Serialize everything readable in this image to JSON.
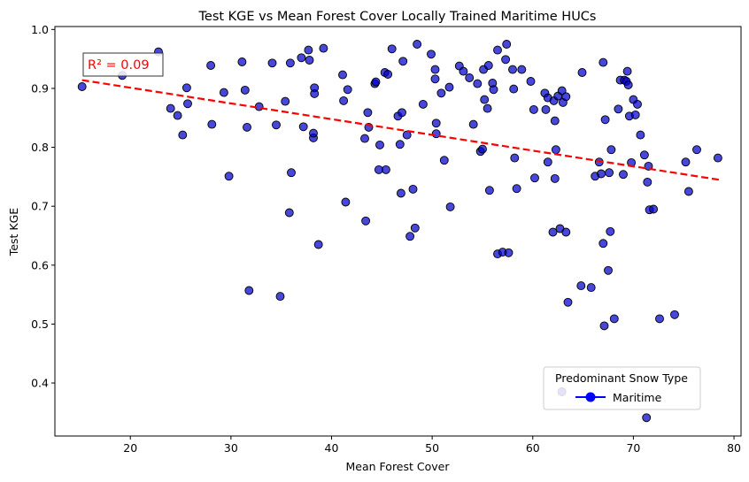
{
  "chart_data": {
    "type": "scatter",
    "title": "Test KGE vs Mean Forest Cover Locally Trained Maritime HUCs",
    "xlabel": "Mean Forest Cover",
    "ylabel": "Test KGE",
    "xlim": [
      12.5,
      80.7
    ],
    "ylim": [
      0.31,
      1.005
    ],
    "xticks": [
      20,
      30,
      40,
      50,
      60,
      70,
      80
    ],
    "yticks": [
      0.4,
      0.5,
      0.6,
      0.7,
      0.8,
      0.9,
      1.0
    ],
    "xtick_labels": [
      "20",
      "30",
      "40",
      "50",
      "60",
      "70",
      "80"
    ],
    "ytick_labels": [
      "0.4",
      "0.5",
      "0.6",
      "0.7",
      "0.8",
      "0.9",
      "1.0"
    ],
    "grid": false,
    "point_color": "#0000cc",
    "trend_color": "#ff0000",
    "trendline": {
      "x": [
        15.2,
        78.5
      ],
      "y": [
        0.914,
        0.745
      ]
    },
    "r2_label": "R² = 0.09",
    "legend": {
      "title": "Predominant Snow Type",
      "entries": [
        "Maritime"
      ],
      "placement": "lower-right"
    },
    "series": [
      {
        "name": "Maritime",
        "points": [
          [
            15.2,
            0.903
          ],
          [
            19.2,
            0.922
          ],
          [
            22.8,
            0.962
          ],
          [
            24.0,
            0.866
          ],
          [
            24.7,
            0.854
          ],
          [
            25.2,
            0.821
          ],
          [
            25.6,
            0.901
          ],
          [
            25.7,
            0.874
          ],
          [
            28.0,
            0.939
          ],
          [
            28.1,
            0.839
          ],
          [
            29.3,
            0.893
          ],
          [
            29.8,
            0.751
          ],
          [
            31.1,
            0.945
          ],
          [
            31.4,
            0.897
          ],
          [
            31.6,
            0.834
          ],
          [
            31.8,
            0.557
          ],
          [
            32.8,
            0.869
          ],
          [
            34.1,
            0.943
          ],
          [
            34.5,
            0.838
          ],
          [
            34.9,
            0.547
          ],
          [
            35.4,
            0.878
          ],
          [
            35.8,
            0.689
          ],
          [
            35.9,
            0.943
          ],
          [
            36.0,
            0.757
          ],
          [
            37.0,
            0.952
          ],
          [
            37.2,
            0.835
          ],
          [
            37.7,
            0.965
          ],
          [
            37.8,
            0.948
          ],
          [
            38.2,
            0.816
          ],
          [
            38.2,
            0.824
          ],
          [
            38.3,
            0.901
          ],
          [
            38.3,
            0.891
          ],
          [
            38.7,
            0.635
          ],
          [
            39.2,
            0.968
          ],
          [
            41.1,
            0.923
          ],
          [
            41.2,
            0.879
          ],
          [
            41.4,
            0.707
          ],
          [
            41.6,
            0.898
          ],
          [
            43.3,
            0.815
          ],
          [
            43.4,
            0.675
          ],
          [
            43.6,
            0.859
          ],
          [
            43.7,
            0.834
          ],
          [
            44.3,
            0.908
          ],
          [
            44.4,
            0.911
          ],
          [
            44.7,
            0.762
          ],
          [
            44.8,
            0.804
          ],
          [
            45.3,
            0.927
          ],
          [
            45.4,
            0.762
          ],
          [
            45.6,
            0.924
          ],
          [
            46.0,
            0.967
          ],
          [
            46.6,
            0.853
          ],
          [
            46.8,
            0.805
          ],
          [
            46.9,
            0.722
          ],
          [
            47.0,
            0.859
          ],
          [
            47.1,
            0.946
          ],
          [
            47.5,
            0.821
          ],
          [
            47.8,
            0.649
          ],
          [
            48.1,
            0.729
          ],
          [
            48.3,
            0.663
          ],
          [
            48.5,
            0.975
          ],
          [
            49.1,
            0.873
          ],
          [
            49.9,
            0.958
          ],
          [
            50.3,
            0.932
          ],
          [
            50.3,
            0.916
          ],
          [
            50.4,
            0.823
          ],
          [
            50.4,
            0.841
          ],
          [
            50.9,
            0.892
          ],
          [
            51.2,
            0.778
          ],
          [
            51.7,
            0.902
          ],
          [
            51.8,
            0.699
          ],
          [
            52.7,
            0.938
          ],
          [
            53.1,
            0.929
          ],
          [
            53.7,
            0.918
          ],
          [
            54.1,
            0.839
          ],
          [
            54.5,
            0.908
          ],
          [
            54.8,
            0.793
          ],
          [
            55.0,
            0.797
          ],
          [
            55.1,
            0.932
          ],
          [
            55.2,
            0.881
          ],
          [
            55.5,
            0.866
          ],
          [
            55.6,
            0.939
          ],
          [
            55.7,
            0.727
          ],
          [
            56.0,
            0.909
          ],
          [
            56.1,
            0.898
          ],
          [
            56.5,
            0.965
          ],
          [
            56.5,
            0.619
          ],
          [
            57.0,
            0.622
          ],
          [
            57.3,
            0.949
          ],
          [
            57.4,
            0.975
          ],
          [
            57.6,
            0.621
          ],
          [
            58.0,
            0.932
          ],
          [
            58.1,
            0.899
          ],
          [
            58.2,
            0.782
          ],
          [
            58.4,
            0.73
          ],
          [
            58.9,
            0.932
          ],
          [
            59.8,
            0.912
          ],
          [
            60.1,
            0.864
          ],
          [
            60.2,
            0.748
          ],
          [
            61.2,
            0.892
          ],
          [
            61.3,
            0.864
          ],
          [
            61.5,
            0.775
          ],
          [
            61.5,
            0.884
          ],
          [
            62.0,
            0.656
          ],
          [
            62.1,
            0.879
          ],
          [
            62.2,
            0.747
          ],
          [
            62.2,
            0.845
          ],
          [
            62.3,
            0.796
          ],
          [
            62.5,
            0.887
          ],
          [
            62.7,
            0.662
          ],
          [
            62.9,
            0.896
          ],
          [
            63.0,
            0.876
          ],
          [
            63.3,
            0.886
          ],
          [
            63.3,
            0.656
          ],
          [
            63.5,
            0.537
          ],
          [
            64.8,
            0.565
          ],
          [
            64.9,
            0.927
          ],
          [
            65.8,
            0.562
          ],
          [
            66.2,
            0.751
          ],
          [
            66.6,
            0.775
          ],
          [
            66.8,
            0.755
          ],
          [
            67.0,
            0.944
          ],
          [
            67.0,
            0.637
          ],
          [
            67.1,
            0.497
          ],
          [
            67.2,
            0.847
          ],
          [
            67.5,
            0.591
          ],
          [
            67.6,
            0.757
          ],
          [
            67.7,
            0.657
          ],
          [
            67.8,
            0.796
          ],
          [
            68.1,
            0.509
          ],
          [
            68.5,
            0.865
          ],
          [
            68.7,
            0.914
          ],
          [
            69.0,
            0.754
          ],
          [
            69.1,
            0.914
          ],
          [
            69.3,
            0.912
          ],
          [
            69.4,
            0.929
          ],
          [
            69.5,
            0.906
          ],
          [
            69.6,
            0.853
          ],
          [
            69.8,
            0.774
          ],
          [
            70.0,
            0.881
          ],
          [
            70.2,
            0.855
          ],
          [
            70.4,
            0.873
          ],
          [
            70.7,
            0.821
          ],
          [
            71.1,
            0.787
          ],
          [
            71.4,
            0.741
          ],
          [
            71.5,
            0.768
          ],
          [
            71.6,
            0.694
          ],
          [
            72.0,
            0.695
          ],
          [
            72.6,
            0.509
          ],
          [
            74.1,
            0.516
          ],
          [
            75.2,
            0.775
          ],
          [
            75.5,
            0.725
          ],
          [
            76.3,
            0.796
          ],
          [
            78.4,
            0.782
          ],
          [
            71.3,
            0.341
          ],
          [
            62.9,
            0.385
          ]
        ]
      }
    ]
  }
}
